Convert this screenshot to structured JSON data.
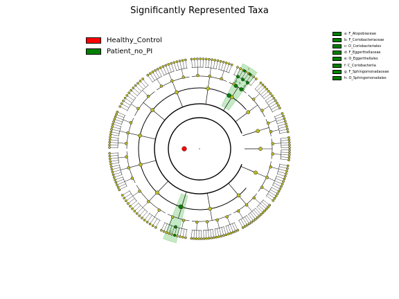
{
  "title": "Significantly Represented Taxa",
  "legend": [
    {
      "label": "Healthy_Control",
      "color": "#ff0000"
    },
    {
      "label": "Patient_no_PI",
      "color": "#008000"
    }
  ],
  "clade_legend": [
    {
      "letter": "a",
      "label": "a: F_Atopobiaceae"
    },
    {
      "letter": "b",
      "label": "b: F_Coriobacteriaceae"
    },
    {
      "letter": "c",
      "label": "c: O_Coriobacteriales"
    },
    {
      "letter": "d",
      "label": "d: F_Eggerthellaceae"
    },
    {
      "letter": "e",
      "label": "e: O_Eggerthellales"
    },
    {
      "letter": "f",
      "label": "f: C_Coriobacteriia"
    },
    {
      "letter": "g",
      "label": "g: F_Sphingomonadaceae"
    },
    {
      "letter": "h",
      "label": "h: O_Sphingomonadales"
    }
  ],
  "colors": {
    "neutral_node": "#bcbd22",
    "enriched_node": "#008000",
    "healthy_node": "#ff0000",
    "shade": "#7fcf7f",
    "legend_swatch": "#008000"
  }
}
